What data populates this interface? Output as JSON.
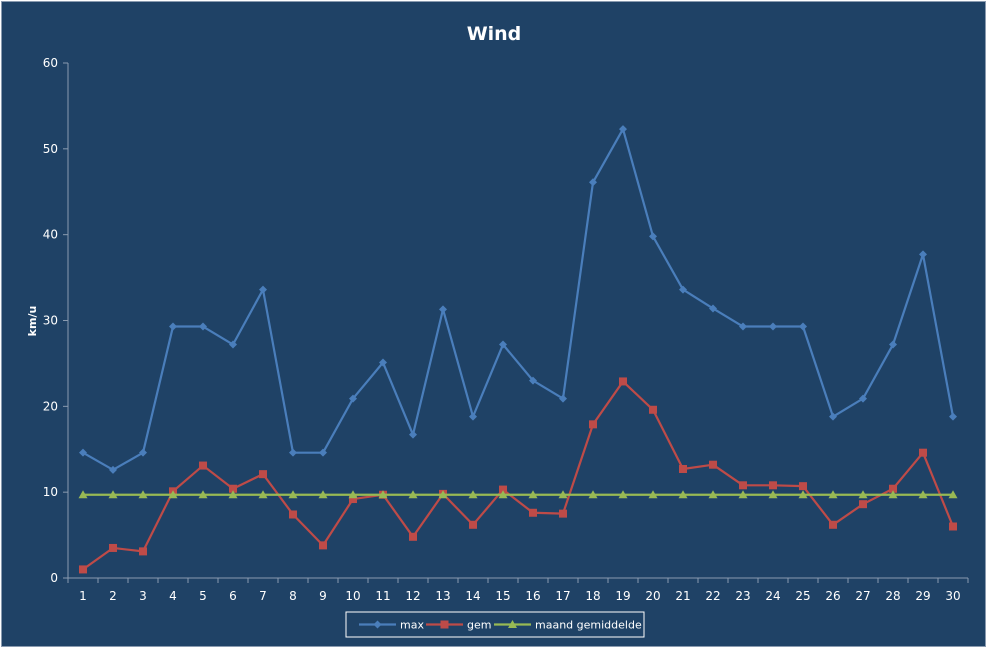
{
  "chart_data": {
    "type": "line",
    "title": "Wind",
    "xlabel": "",
    "ylabel": "km/u",
    "ylim": [
      0,
      60
    ],
    "yticks": [
      0,
      10,
      20,
      30,
      40,
      50,
      60
    ],
    "grid": false,
    "legend_position": "bottom",
    "categories": [
      "1",
      "2",
      "3",
      "4",
      "5",
      "6",
      "7",
      "8",
      "9",
      "10",
      "11",
      "12",
      "13",
      "14",
      "15",
      "16",
      "17",
      "18",
      "19",
      "20",
      "21",
      "22",
      "23",
      "24",
      "25",
      "26",
      "27",
      "28",
      "29",
      "30"
    ],
    "series": [
      {
        "name": "max",
        "color": "#4a7ebb",
        "marker": "diamond",
        "values": [
          14.6,
          12.6,
          14.6,
          29.3,
          29.3,
          27.2,
          33.6,
          14.6,
          14.6,
          20.9,
          25.1,
          16.7,
          31.3,
          18.8,
          27.2,
          23.0,
          20.9,
          46.1,
          52.3,
          39.8,
          33.6,
          31.4,
          29.3,
          29.3,
          29.3,
          18.8,
          20.9,
          27.2,
          37.7,
          18.8
        ]
      },
      {
        "name": "gem",
        "color": "#be4b48",
        "marker": "square",
        "values": [
          1.0,
          3.5,
          3.1,
          10.1,
          13.1,
          10.4,
          12.1,
          7.4,
          3.8,
          9.2,
          9.7,
          4.8,
          9.8,
          6.2,
          10.3,
          7.6,
          7.5,
          17.9,
          22.9,
          19.6,
          12.7,
          13.2,
          10.8,
          10.8,
          10.7,
          6.2,
          8.6,
          10.4,
          14.6,
          6.0
        ]
      },
      {
        "name": "maand gemiddelde",
        "color": "#98b954",
        "marker": "triangle",
        "values": [
          9.7,
          9.7,
          9.7,
          9.7,
          9.7,
          9.7,
          9.7,
          9.7,
          9.7,
          9.7,
          9.7,
          9.7,
          9.7,
          9.7,
          9.7,
          9.7,
          9.7,
          9.7,
          9.7,
          9.7,
          9.7,
          9.7,
          9.7,
          9.7,
          9.7,
          9.7,
          9.7,
          9.7,
          9.7,
          9.7
        ]
      }
    ]
  }
}
